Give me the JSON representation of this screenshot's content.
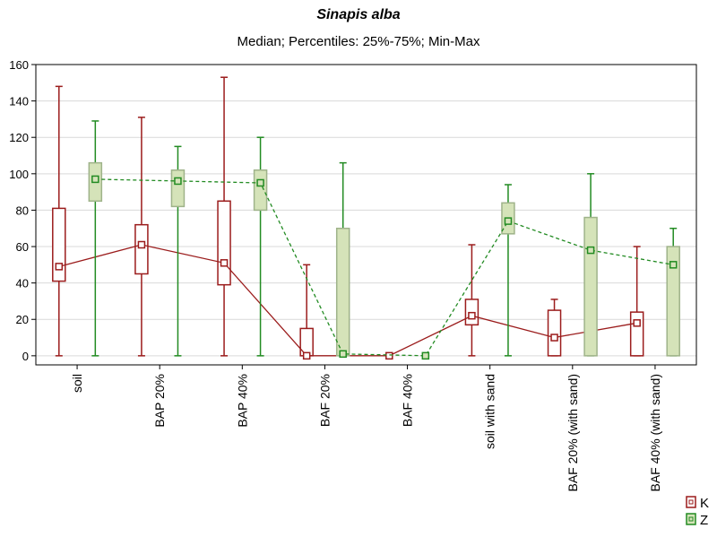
{
  "chart_data": {
    "type": "box",
    "title": "Sinapis alba",
    "subtitle": "Median; Percentiles: 25%-75%; Min-Max",
    "categories": [
      "soil",
      "BAP 20%",
      "BAP 40%",
      "BAF 20%",
      "BAF 40%",
      "soil with sand",
      "BAF 20% (with sand)",
      "BAF 40% (with sand)"
    ],
    "ylim": [
      -5,
      160
    ],
    "yticks": [
      0,
      20,
      40,
      60,
      80,
      100,
      120,
      140,
      160
    ],
    "grid": true,
    "legend_position": "bottom-right",
    "series": [
      {
        "name": "K",
        "color": "#9b1c1c",
        "line_style": "solid",
        "min": [
          0,
          0,
          0,
          0,
          0,
          0,
          0,
          0
        ],
        "q1": [
          41,
          45,
          39,
          0,
          0,
          17,
          0,
          0
        ],
        "median": [
          49,
          61,
          51,
          0,
          0,
          22,
          10,
          18
        ],
        "q3": [
          81,
          72,
          85,
          15,
          0,
          31,
          25,
          24
        ],
        "max": [
          148,
          131,
          153,
          50,
          0,
          61,
          31,
          60
        ]
      },
      {
        "name": "Z",
        "color": "#228b22",
        "box_fill": "#d5e3b9",
        "box_stroke": "#9fb38a",
        "line_style": "dashed",
        "min": [
          0,
          0,
          0,
          0,
          0,
          0,
          0,
          0
        ],
        "q1": [
          85,
          82,
          80,
          0,
          0,
          67,
          0,
          0
        ],
        "median": [
          97,
          96,
          95,
          1,
          0,
          74,
          58,
          50
        ],
        "q3": [
          106,
          102,
          102,
          70,
          0,
          84,
          76,
          60
        ],
        "max": [
          129,
          115,
          120,
          106,
          0,
          94,
          100,
          70
        ]
      }
    ]
  }
}
